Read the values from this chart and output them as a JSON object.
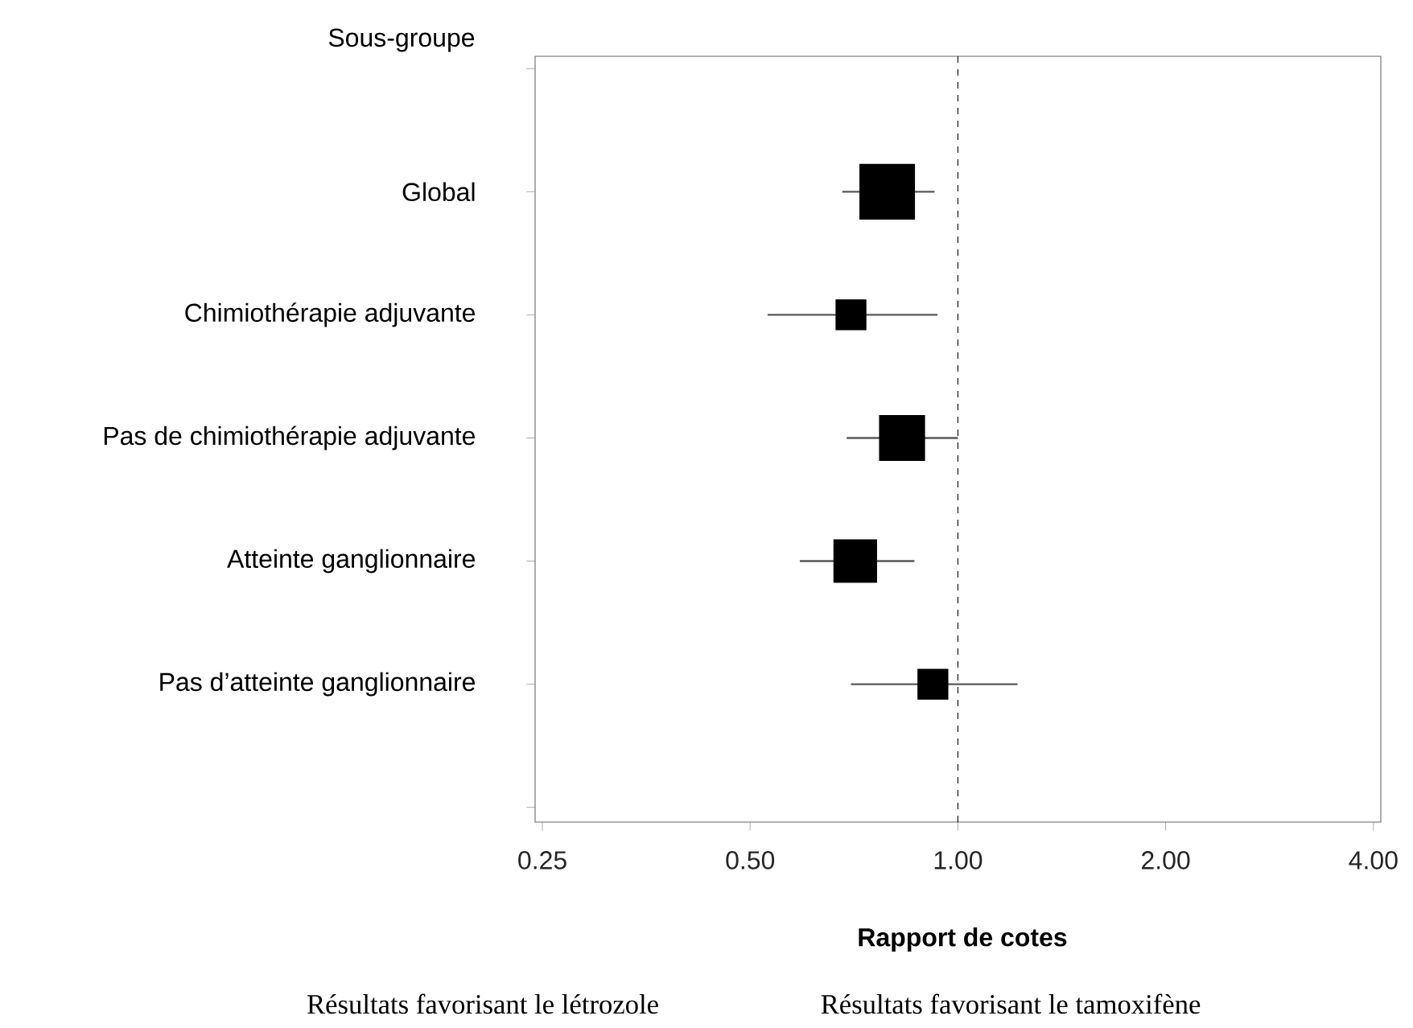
{
  "chart_data": {
    "type": "bubble",
    "orientation": "horizontal",
    "log": "x",
    "marker": "square",
    "color": "#000000",
    "ylabel": "Sous-groupe",
    "xlabel": "Rapport de cotes",
    "categories": [
      null,
      "Global",
      "Chimiothérapie adjuvante",
      "Pas de chimiothérapie adjuvante",
      "Atteinte ganglionnaire",
      "Pas d’atteinte ganglionnaire",
      null
    ],
    "values": [
      null,
      0.79,
      0.7,
      0.83,
      0.71,
      0.92,
      null
    ],
    "sizes": [
      null,
      1,
      0.3,
      0.68,
      0.61,
      0.3,
      null
    ],
    "errors": [
      null,
      [
        0.68,
        0.925
      ],
      [
        0.53,
        0.934
      ],
      [
        0.69,
        1.0
      ],
      [
        0.59,
        0.865
      ],
      [
        0.7,
        1.22
      ],
      null
    ],
    "xlim": [
      0.244,
      4.1
    ],
    "xticks": [
      0.25,
      {
        "value": 0.5,
        "label": "0.50"
      },
      {
        "value": 1,
        "label": "1.00"
      },
      {
        "value": 2,
        "label": "2.00"
      },
      {
        "value": 4,
        "label": "4.00"
      }
    ],
    "ref_lines": [
      {
        "axis": "x",
        "value": 1,
        "line_style": "dashed",
        "color": "#000000"
      }
    ],
    "annotations": [
      "Résultats favorisant le létrozole",
      "Résultats favorisant le tamoxifène"
    ]
  }
}
